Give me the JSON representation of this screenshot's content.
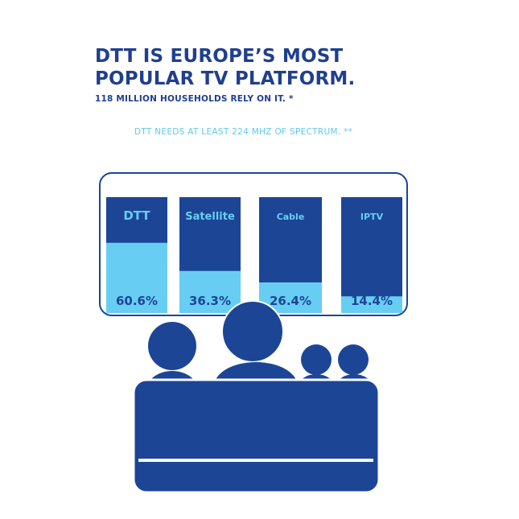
{
  "header": {
    "title_line1": "DTT IS EUROPE’S MOST",
    "title_line2": "POPULAR TV PLATFORM.",
    "subtitle": "118 MILLION HOUSEHOLDS RELY ON IT. *",
    "note": "DTT NEEDS AT LEAST 224 MHZ OF SPECTRUM. **"
  },
  "colors": {
    "dark_blue": "#1c4596",
    "light_blue": "#68cdf3",
    "title_blue": "#1f3f8f",
    "note_blue": "#5fc8ef"
  },
  "chart_data": {
    "type": "bar",
    "categories": [
      "DTT",
      "Satellite",
      "Cable",
      "IPTV"
    ],
    "values": [
      60.6,
      36.3,
      26.4,
      14.4
    ],
    "value_labels": [
      "60.6%",
      "36.3%",
      "26.4%",
      "14.4%"
    ],
    "ylim": [
      0,
      100
    ],
    "grid": false,
    "legend": "none",
    "title": "",
    "xlabel": "",
    "ylabel": ""
  }
}
